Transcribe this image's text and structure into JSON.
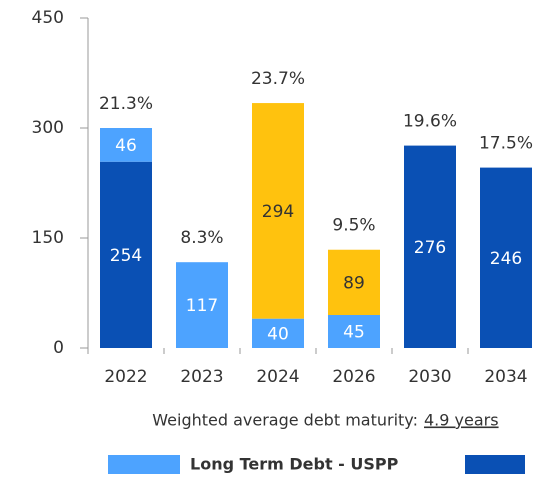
{
  "chart_data": {
    "type": "stacked_bar",
    "categories": [
      "2022",
      "2023",
      "2024",
      "2026",
      "2030",
      "2034"
    ],
    "series": [
      {
        "color": "#0a50b4",
        "values": [
          254,
          null,
          null,
          null,
          276,
          246
        ]
      },
      {
        "name": "Long Term Debt - USPP",
        "color": "#4da3ff",
        "values": [
          46,
          117,
          40,
          45,
          null,
          null
        ]
      },
      {
        "color": "#ffc20e",
        "values": [
          null,
          null,
          294,
          89,
          null,
          null
        ]
      }
    ],
    "top_labels": [
      "21.3%",
      "8.3%",
      "23.7%",
      "9.5%",
      "19.6%",
      "17.5%"
    ],
    "ylim": [
      0,
      450
    ],
    "yticks": [
      0,
      150,
      300,
      450
    ],
    "note": {
      "text": "Weighted average debt maturity:",
      "link": "4.9 years"
    }
  }
}
